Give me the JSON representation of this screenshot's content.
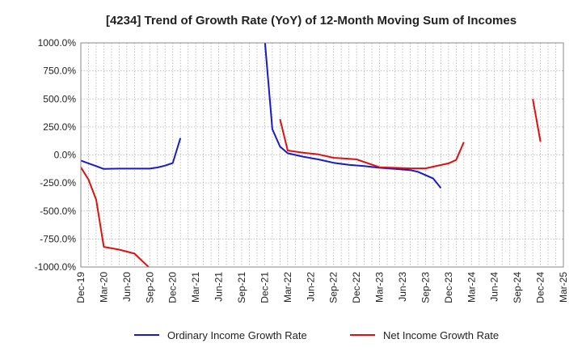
{
  "chart_data": {
    "type": "line",
    "title": "[4234]  Trend of Growth Rate (YoY) of 12-Month Moving Sum of Incomes",
    "xlabel": "",
    "ylabel": "",
    "ylim": [
      -1000,
      1000
    ],
    "y_ticks": [
      "1000.0%",
      "750.0%",
      "500.0%",
      "250.0%",
      "0.0%",
      "-250.0%",
      "-500.0%",
      "-750.0%",
      "-1000.0%"
    ],
    "y_tick_values": [
      1000,
      750,
      500,
      250,
      0,
      -250,
      -500,
      -750,
      -1000
    ],
    "x_ticks": [
      "Dec-19",
      "Mar-20",
      "Jun-20",
      "Sep-20",
      "Dec-20",
      "Mar-21",
      "Jun-21",
      "Sep-21",
      "Dec-21",
      "Mar-22",
      "Jun-22",
      "Sep-22",
      "Dec-22",
      "Mar-23",
      "Jun-23",
      "Sep-23",
      "Dec-23",
      "Mar-24",
      "Jun-24",
      "Sep-24",
      "Dec-24",
      "Mar-25"
    ],
    "x_start": "2019-12",
    "x_end": "2025-03",
    "grid": true,
    "legend_position": "bottom",
    "series": [
      {
        "name": "Ordinary Income Growth Rate",
        "color": "#1a1ac8",
        "points": [
          [
            "2019-12",
            -50
          ],
          [
            "2020-01",
            -75
          ],
          [
            "2020-02",
            -100
          ],
          [
            "2020-03",
            -125
          ],
          [
            "2020-05",
            -122
          ],
          [
            "2020-07",
            -122
          ],
          [
            "2020-09",
            -122
          ],
          [
            "2020-10",
            -112
          ],
          [
            "2020-11",
            -95
          ],
          [
            "2020-12",
            -72
          ],
          [
            "2021-01",
            150
          ],
          [
            null,
            null
          ],
          [
            "2021-12",
            1040
          ],
          [
            "2022-01",
            230
          ],
          [
            "2022-02",
            75
          ],
          [
            "2022-03",
            15
          ],
          [
            "2022-05",
            -15
          ],
          [
            "2022-07",
            -40
          ],
          [
            "2022-09",
            -70
          ],
          [
            "2022-11",
            -88
          ],
          [
            "2023-01",
            -100
          ],
          [
            "2023-03",
            -115
          ],
          [
            "2023-05",
            -125
          ],
          [
            "2023-07",
            -135
          ],
          [
            "2023-08",
            -150
          ],
          [
            "2023-09",
            -180
          ],
          [
            "2023-10",
            -210
          ],
          [
            "2023-11",
            -295
          ]
        ]
      },
      {
        "name": "Net Income Growth Rate",
        "color": "#dd1111",
        "points": [
          [
            "2019-12",
            -110
          ],
          [
            "2020-01",
            -220
          ],
          [
            "2020-02",
            -400
          ],
          [
            "2020-03",
            -820
          ],
          [
            "2020-05",
            -845
          ],
          [
            "2020-07",
            -880
          ],
          [
            "2020-09",
            -1010
          ],
          [
            null,
            null
          ],
          [
            "2022-02",
            320
          ],
          [
            "2022-03",
            40
          ],
          [
            "2022-05",
            20
          ],
          [
            "2022-07",
            5
          ],
          [
            "2022-09",
            -25
          ],
          [
            "2022-11",
            -35
          ],
          [
            "2022-12",
            -40
          ],
          [
            "2023-03",
            -110
          ],
          [
            "2023-05",
            -115
          ],
          [
            "2023-07",
            -120
          ],
          [
            "2023-09",
            -120
          ],
          [
            "2023-10",
            -105
          ],
          [
            "2023-12",
            -75
          ],
          [
            "2024-01",
            -45
          ],
          [
            "2024-02",
            115
          ],
          [
            null,
            null
          ],
          [
            "2024-11",
            500
          ],
          [
            "2024-12",
            120
          ]
        ]
      }
    ]
  }
}
